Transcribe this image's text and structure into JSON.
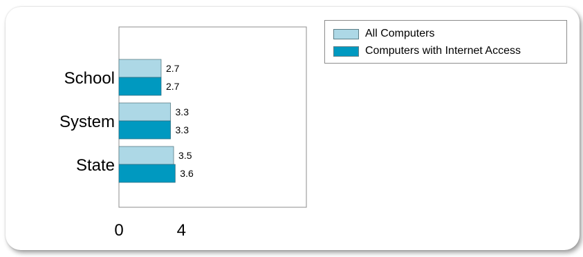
{
  "chart_data": {
    "type": "bar",
    "orientation": "horizontal",
    "categories": [
      "School",
      "System",
      "State"
    ],
    "series": [
      {
        "name": "All Computers",
        "color": "#add8e6",
        "values": [
          2.7,
          3.3,
          3.5
        ]
      },
      {
        "name": "Computers with Internet Access",
        "color": "#0099c0",
        "values": [
          2.7,
          3.3,
          3.6
        ]
      }
    ],
    "xlim": [
      0,
      12
    ],
    "xticks": [
      0,
      4
    ],
    "grid": false,
    "legend_position": "top-right"
  }
}
